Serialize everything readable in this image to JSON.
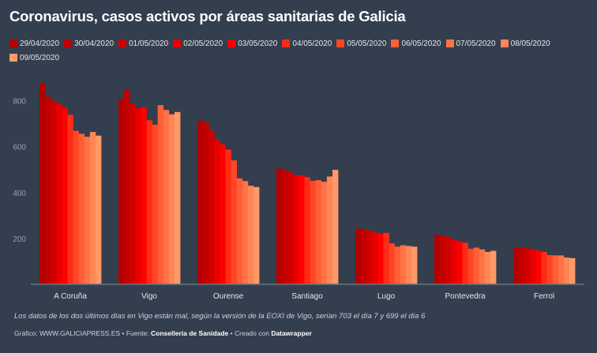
{
  "chart_data": {
    "type": "bar",
    "title": "Coronavirus, casos activos por áreas sanitarias de Galicia",
    "categories": [
      "A Coruña",
      "Vigo",
      "Ourense",
      "Santiago",
      "Lugo",
      "Pontevedra",
      "Ferrol"
    ],
    "series": [
      {
        "name": "29/04/2020",
        "color": "#b30000",
        "values": [
          878,
          808,
          714,
          505,
          243,
          216,
          161
        ]
      },
      {
        "name": "30/04/2020",
        "color": "#c20000",
        "values": [
          818,
          847,
          706,
          497,
          241,
          212,
          158
        ]
      },
      {
        "name": "01/05/2020",
        "color": "#d10000",
        "values": [
          800,
          787,
          671,
          489,
          235,
          207,
          157
        ]
      },
      {
        "name": "02/05/2020",
        "color": "#e60000",
        "values": [
          786,
          768,
          633,
          476,
          226,
          194,
          152
        ]
      },
      {
        "name": "03/05/2020",
        "color": "#ff0000",
        "values": [
          771,
          772,
          610,
          476,
          221,
          187,
          147
        ]
      },
      {
        "name": "04/05/2020",
        "color": "#ff2b14",
        "values": [
          739,
          715,
          587,
          467,
          224,
          181,
          141
        ]
      },
      {
        "name": "05/05/2020",
        "color": "#ff4526",
        "values": [
          669,
          696,
          540,
          451,
          178,
          155,
          127
        ]
      },
      {
        "name": "06/05/2020",
        "color": "#ff5e36",
        "values": [
          656,
          781,
          462,
          454,
          164,
          160,
          126
        ]
      },
      {
        "name": "07/05/2020",
        "color": "#ff7345",
        "values": [
          643,
          760,
          450,
          447,
          170,
          152,
          126
        ]
      },
      {
        "name": "08/05/2020",
        "color": "#ff8656",
        "values": [
          664,
          741,
          430,
          470,
          167,
          141,
          117
        ]
      },
      {
        "name": "09/05/2020",
        "color": "#ff9966",
        "values": [
          648,
          751,
          424,
          499,
          164,
          146,
          114
        ]
      }
    ],
    "yticks": [
      200,
      400,
      600,
      800
    ],
    "ylim": [
      0,
      900
    ],
    "grid": false,
    "legend": "top"
  },
  "footer": {
    "note": "Los datos de los dos últimos días en Vigo están mal, según la versión de la EOXI de Vigo, serían 703 el día 7 y 699 el día 6",
    "credit_prefix": "Gráfico: WWW.GALICIAPRESS.ES • Fuente: ",
    "source": "Consellería de Sanidade",
    "credit_mid": " • Creado con ",
    "tool": "Datawrapper"
  }
}
